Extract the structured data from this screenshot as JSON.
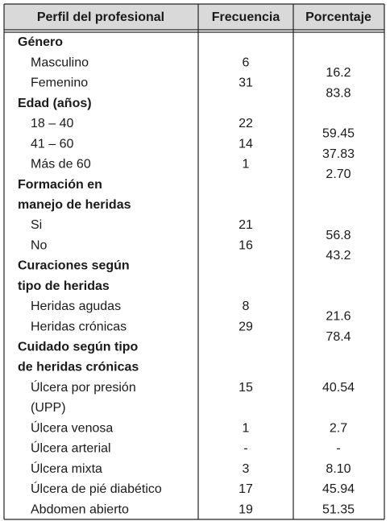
{
  "table": {
    "headers": [
      "Perfil del profesional",
      "Frecuencia",
      "Porcentaje"
    ],
    "sections": [
      {
        "title": [
          "Género"
        ],
        "rows": [
          {
            "label": [
              "Masculino"
            ],
            "frequency": "6",
            "percentage": "16.2"
          },
          {
            "label": [
              "Femenino"
            ],
            "frequency": "31",
            "percentage": "83.8"
          }
        ]
      },
      {
        "title": [
          "Edad (años)"
        ],
        "rows": [
          {
            "label": [
              "18 – 40"
            ],
            "frequency": "22",
            "percentage": "59.45"
          },
          {
            "label": [
              "41 – 60"
            ],
            "frequency": "14",
            "percentage": "37.83"
          },
          {
            "label": [
              "Más de 60"
            ],
            "frequency": "1",
            "percentage": "2.70"
          }
        ]
      },
      {
        "title": [
          "Formación en",
          "manejo de heridas"
        ],
        "rows": [
          {
            "label": [
              "Si"
            ],
            "frequency": "21",
            "percentage": "56.8"
          },
          {
            "label": [
              "No"
            ],
            "frequency": "16",
            "percentage": "43.2"
          }
        ]
      },
      {
        "title": [
          "Curaciones según",
          "tipo de heridas"
        ],
        "rows": [
          {
            "label": [
              "Heridas agudas"
            ],
            "frequency": "8",
            "percentage": "21.6"
          },
          {
            "label": [
              "Heridas crónicas"
            ],
            "frequency": "29",
            "percentage": "78.4"
          }
        ]
      },
      {
        "title": [
          "Cuidado según tipo",
          "de heridas crónicas"
        ],
        "rows": [
          {
            "label": [
              "Úlcera por presión",
              "(UPP)"
            ],
            "frequency": "15",
            "percentage": "40.54"
          },
          {
            "label": [
              "Úlcera venosa"
            ],
            "frequency": "1",
            "percentage": "2.7"
          },
          {
            "label": [
              "Úlcera arterial"
            ],
            "frequency": "-",
            "percentage": "-"
          },
          {
            "label": [
              "Úlcera mixta"
            ],
            "frequency": "3",
            "percentage": "8.10"
          },
          {
            "label": [
              "Úlcera de pié diabético"
            ],
            "frequency": "17",
            "percentage": "45.94"
          },
          {
            "label": [
              "Abdomen abierto"
            ],
            "frequency": "19",
            "percentage": "51.35"
          }
        ]
      }
    ]
  }
}
